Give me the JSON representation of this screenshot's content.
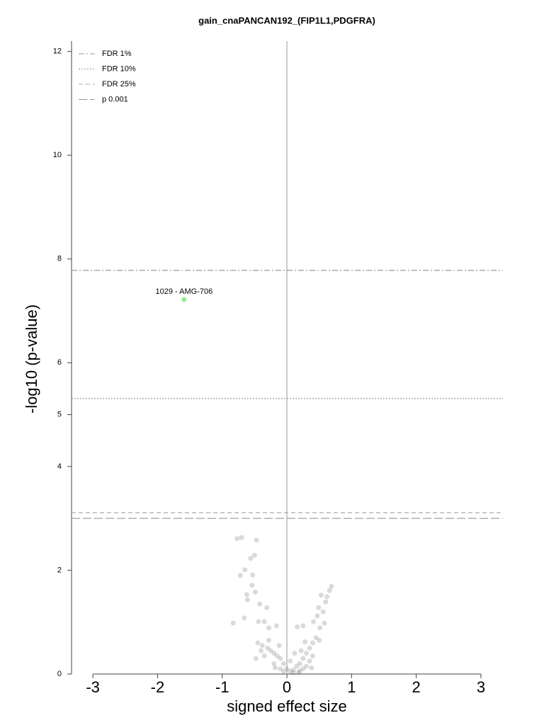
{
  "chart_data": {
    "type": "scatter",
    "title": "gain_cnaPANCAN192_(FIP1L1,PDGFRA)",
    "xlabel": "signed effect size",
    "ylabel": "-log10 (p-value)",
    "xlim": [
      -3.33,
      3.34
    ],
    "ylim": [
      0,
      12.2
    ],
    "xticks": [
      -3,
      -2,
      -1,
      0,
      1,
      2,
      3
    ],
    "yticks": [
      0,
      2,
      4,
      5,
      6,
      8,
      10,
      12
    ],
    "zero_line": true,
    "legend": "upper left",
    "thresholds": [
      {
        "name": "FDR 1%",
        "value": 7.78,
        "dash": "dashdot",
        "color": "#999999"
      },
      {
        "name": "FDR 10%",
        "value": 5.31,
        "dash": "dotted",
        "color": "#999999"
      },
      {
        "name": "FDR 25%",
        "value": 3.11,
        "dash": "dashed",
        "color": "#aaaaaa"
      },
      {
        "name": "p 0.001",
        "value": 3.0,
        "dash": "longdash",
        "color": "#999999"
      }
    ],
    "points": {
      "color": "#555555",
      "x": [
        -0.77,
        -0.7,
        -0.47,
        -0.56,
        -0.5,
        -0.65,
        -0.72,
        -0.53,
        -0.54,
        -0.62,
        -0.49,
        -0.61,
        -0.42,
        -0.31,
        -0.66,
        -0.83,
        -0.44,
        -0.35,
        -0.28,
        -0.16,
        0.69,
        0.66,
        0.53,
        0.62,
        0.6,
        0.49,
        0.56,
        0.47,
        0.58,
        0.41,
        0.51,
        0.16,
        0.25,
        -0.45,
        -0.38,
        -0.3,
        -0.25,
        -0.2,
        -0.15,
        -0.1,
        -0.05,
        0.0,
        0.05,
        0.1,
        0.15,
        0.2,
        0.25,
        0.3,
        0.35,
        0.4,
        0.45,
        -0.35,
        -0.2,
        -0.1,
        0.1,
        0.2,
        0.3,
        0.35,
        0.4,
        -0.4,
        -0.28,
        -0.12,
        0.22,
        0.28,
        0.5,
        0.18,
        0.25,
        -0.05,
        0.05,
        -0.48,
        0.38,
        0.12,
        -0.18
      ],
      "y": [
        2.61,
        2.63,
        2.58,
        2.23,
        2.29,
        2.01,
        1.9,
        1.91,
        1.71,
        1.53,
        1.58,
        1.43,
        1.35,
        1.28,
        1.08,
        0.98,
        1.01,
        1.01,
        0.89,
        0.93,
        1.69,
        1.61,
        1.52,
        1.49,
        1.39,
        1.28,
        1.2,
        1.12,
        0.98,
        1.01,
        0.89,
        0.91,
        0.93,
        0.6,
        0.55,
        0.5,
        0.45,
        0.4,
        0.35,
        0.3,
        0.2,
        0.1,
        0.05,
        0.08,
        0.15,
        0.2,
        0.3,
        0.4,
        0.5,
        0.6,
        0.7,
        0.35,
        0.2,
        0.1,
        0.02,
        0.06,
        0.15,
        0.25,
        0.35,
        0.45,
        0.65,
        0.55,
        0.45,
        0.62,
        0.65,
        0.03,
        0.1,
        0.05,
        0.25,
        0.3,
        0.12,
        0.4,
        0.12
      ]
    },
    "highlight": {
      "x": -1.59,
      "y": 7.22,
      "label": "1029 - AMG-706",
      "color": "#90ee90"
    }
  }
}
